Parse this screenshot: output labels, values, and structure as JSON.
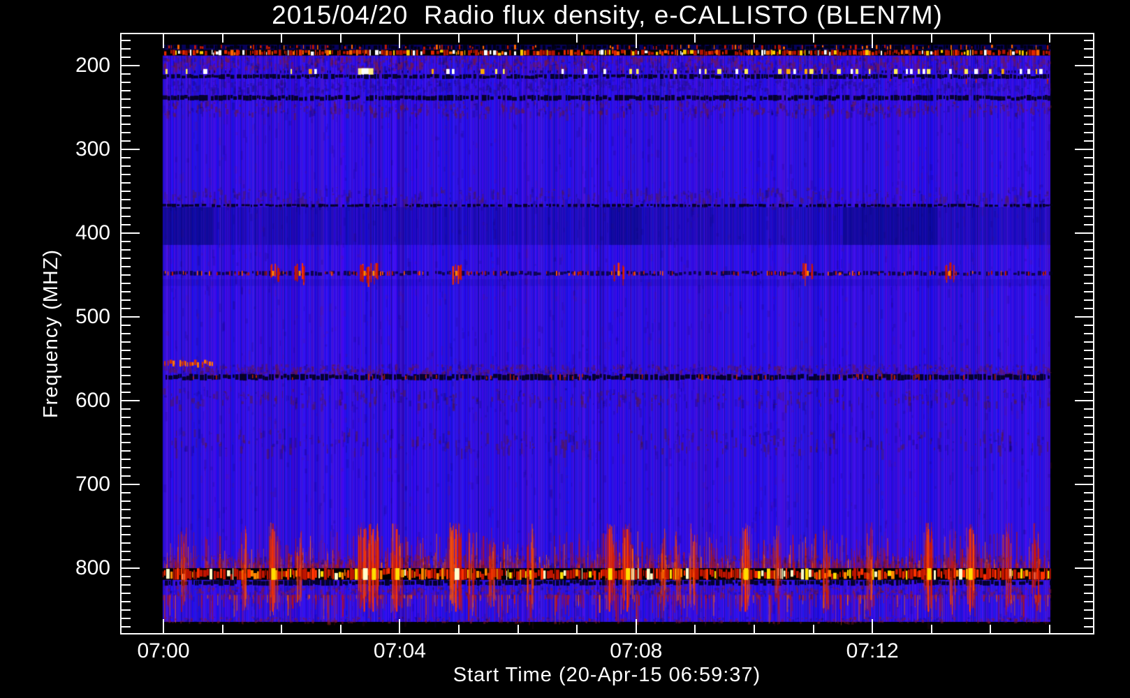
{
  "chart_data": {
    "type": "heatmap",
    "subtype": "radio-spectrogram",
    "title": "2015/04/20  Radio flux density, e-CALLISTO (BLEN7M)",
    "xlabel": "Start Time (20-Apr-15 06:59:37)",
    "ylabel": "Frequency (MHZ)",
    "date": "2015/04/20",
    "instrument": "e-CALLISTO (BLEN7M)",
    "start_time": "06:59:37",
    "x_axis": {
      "tick_labels": [
        "07:00",
        "07:04",
        "07:08",
        "07:12"
      ],
      "major_tick_minutes": [
        0,
        4,
        8,
        12
      ],
      "minor_tick_every_minutes": 1,
      "data_span_minutes": [
        0,
        15
      ]
    },
    "y_axis": {
      "tick_labels": [
        "200",
        "300",
        "400",
        "500",
        "600",
        "700",
        "800"
      ],
      "major_ticks_mhz": [
        200,
        300,
        400,
        500,
        600,
        700,
        800
      ],
      "minor_tick_every_mhz": 10,
      "axis_range_mhz": [
        161,
        879
      ],
      "data_range_mhz": [
        175,
        864
      ],
      "direction": "low-frequency-at-top"
    },
    "colormap": {
      "background_quiet": "#2a12e4",
      "dark_band": "#000028",
      "weak_rfi": "#cc1800",
      "medium_rfi": "#ff7700",
      "strong_rfi": "#ffdd00",
      "saturated_rfi": "#ffffff"
    },
    "features": {
      "bands": [
        {
          "f": [
            175,
            181
          ],
          "style": "dark_speckle",
          "note": "dark channel, black gaps, sparse red RFI"
        },
        {
          "f": [
            181,
            188
          ],
          "style": "rfi_dense",
          "density": 0.55,
          "palette": [
            "#b31400",
            "#e52800",
            "#ff6600",
            "#ffcc00",
            "#ffffff"
          ],
          "note": "strong intermittent RFI band ~185 MHz"
        },
        {
          "f": [
            188,
            204
          ],
          "style": "mottle",
          "tint": "#7a1840",
          "strength": 1.0
        },
        {
          "f": [
            204,
            210
          ],
          "style": "bright_dashes",
          "density": 0.055,
          "ramp": true,
          "blob_minute": 3.4,
          "colors": [
            "#ffee55",
            "#ffffff",
            "#ffaa00"
          ],
          "note": "bright dashed RFI line ~207 MHz"
        },
        {
          "f": [
            210,
            216
          ],
          "style": "dark_dashes",
          "density": 0.5,
          "downticks": true
        },
        {
          "f": [
            216,
            230
          ],
          "style": "mottle",
          "tint": "#28108a",
          "strength": 0.6
        },
        {
          "f": [
            235,
            242
          ],
          "style": "dark_dashes",
          "density": 0.55,
          "downticks": false
        },
        {
          "f": [
            242,
            258
          ],
          "style": "mottle",
          "tint": "#6a1a38",
          "strength": 0.55
        },
        {
          "f": [
            345,
            365
          ],
          "style": "mottle",
          "tint": "#501a60",
          "strength": 0.45
        },
        {
          "f": [
            365,
            369
          ],
          "style": "dark_dashes",
          "density": 0.35,
          "downticks": false
        },
        {
          "f": [
            369,
            414
          ],
          "style": "shade",
          "alpha": 0.32,
          "note": "darker blue band 370-415 MHz"
        },
        {
          "f": [
            369,
            414
          ],
          "style": "blocks",
          "alpha": 0.38,
          "x_minutes": [
            [
              0,
              0.85
            ],
            [
              7.55,
              8.1
            ],
            [
              11.5,
              13.1
            ]
          ]
        },
        {
          "f": [
            445,
            451
          ],
          "style": "speckle_line",
          "density": 0.1,
          "spots": [
            1.85,
            2.3,
            3.4,
            3.55,
            4.95,
            7.7,
            10.9,
            13.3
          ],
          "note": "red-speckled RFI line ~448 MHz"
        },
        {
          "f": [
            455,
            463
          ],
          "style": "shade",
          "alpha": 0.14
        },
        {
          "f": [
            551,
            559
          ],
          "style": "red_dashes",
          "density": 0.5,
          "x_minutes": [
            0,
            0.85
          ],
          "note": "orange burst segment at start"
        },
        {
          "f": [
            556,
            568
          ],
          "style": "mottle",
          "tint": "#6a1848",
          "strength": 0.8
        },
        {
          "f": [
            568,
            576
          ],
          "style": "dark_dashes",
          "density": 0.65,
          "downticks": false,
          "redflecks": true,
          "note": "dark dashed line ~572 MHz"
        },
        {
          "f": [
            585,
            605
          ],
          "style": "mottle",
          "tint": "#5a1a40",
          "strength": 0.35
        },
        {
          "f": [
            633,
            658
          ],
          "style": "mottle",
          "tint": "#5a1a40",
          "strength": 0.3
        },
        {
          "f": [
            760,
            800
          ],
          "style": "vstreak_field",
          "count": 950,
          "anchor": "bottom",
          "note": "red noise spikes above 800 MHz line"
        },
        {
          "f": [
            784,
            799
          ],
          "style": "mottle",
          "tint": "#8a1830",
          "strength": 0.85
        },
        {
          "f": [
            800,
            814
          ],
          "style": "rfi_dense",
          "density": 0.82,
          "palette": [
            "#c01400",
            "#ff3300",
            "#ff8800",
            "#ffdd00",
            "#ffffcc"
          ],
          "note": "strongest RFI band ~805 MHz, black with yellow/orange dashes"
        },
        {
          "f": [
            814,
            821
          ],
          "style": "dark_dashes",
          "density": 0.6,
          "downticks": false
        },
        {
          "f": [
            821,
            832
          ],
          "style": "mottle",
          "tint": "#8a1830",
          "strength": 0.7
        },
        {
          "f": [
            832,
            864
          ],
          "style": "vstreak_field",
          "count": 520,
          "anchor": "top"
        },
        {
          "f": [
            858,
            864
          ],
          "style": "mottle",
          "tint": "#8a1830",
          "strength": 0.5
        }
      ],
      "bursts": [
        {
          "minute": 0.35,
          "strength": 1
        },
        {
          "minute": 1.35,
          "strength": 1
        },
        {
          "minute": 1.85,
          "strength": 2
        },
        {
          "minute": 2.3,
          "strength": 1
        },
        {
          "minute": 3.4,
          "strength": 3
        },
        {
          "minute": 3.55,
          "strength": 2
        },
        {
          "minute": 3.95,
          "strength": 2
        },
        {
          "minute": 4.95,
          "strength": 3
        },
        {
          "minute": 5.2,
          "strength": 1
        },
        {
          "minute": 5.55,
          "strength": 1
        },
        {
          "minute": 6.2,
          "strength": 1
        },
        {
          "minute": 7.55,
          "strength": 2
        },
        {
          "minute": 7.85,
          "strength": 2
        },
        {
          "minute": 8.45,
          "strength": 1
        },
        {
          "minute": 8.7,
          "strength": 1
        },
        {
          "minute": 8.95,
          "strength": 1
        },
        {
          "minute": 9.85,
          "strength": 2
        },
        {
          "minute": 10.4,
          "strength": 1
        },
        {
          "minute": 11.2,
          "strength": 1
        },
        {
          "minute": 11.95,
          "strength": 1
        },
        {
          "minute": 12.95,
          "strength": 2
        },
        {
          "minute": 13.35,
          "strength": 1
        },
        {
          "minute": 13.65,
          "strength": 2
        },
        {
          "minute": 14.3,
          "strength": 1
        },
        {
          "minute": 14.75,
          "strength": 1
        }
      ]
    }
  }
}
